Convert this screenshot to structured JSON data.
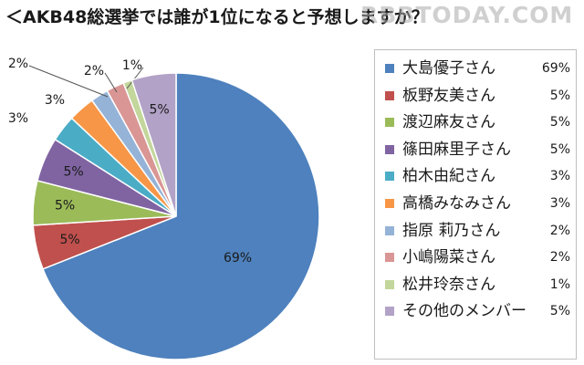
{
  "title": "＜AKB48総選挙では誰が1位になると予想しますか？",
  "watermark": "RBBTODAY.COM",
  "chart_data": {
    "type": "pie",
    "title": "＜AKB48総選挙では誰が1位になると予想しますか？",
    "start_angle_deg": 0,
    "direction": "clockwise",
    "legend_position": "right",
    "slices": [
      {
        "label": "大島優子さん",
        "value": 69,
        "value_label": "69%",
        "legend_value": "69%",
        "color": "#4e81bd"
      },
      {
        "label": "板野友美さん",
        "value": 5,
        "value_label": "5%",
        "legend_value": "5%",
        "color": "#c0504d"
      },
      {
        "label": "渡辺麻友さん",
        "value": 5,
        "value_label": "5%",
        "legend_value": "5%",
        "color": "#9bbb59"
      },
      {
        "label": "篠田麻里子さん",
        "value": 5,
        "value_label": "5%",
        "legend_value": "5%",
        "color": "#8064a2"
      },
      {
        "label": "柏木由紀さん",
        "value": 3,
        "value_label": "3%",
        "legend_value": "3%",
        "color": "#4bacc6"
      },
      {
        "label": "高橋みなみさん",
        "value": 3,
        "value_label": "3%",
        "legend_value": "3%",
        "color": "#f79646"
      },
      {
        "label": "指原 莉乃さん",
        "value": 2,
        "value_label": "2%",
        "legend_value": "2%",
        "color": "#95b3d7"
      },
      {
        "label": "小嶋陽菜さん",
        "value": 2,
        "value_label": "2%",
        "legend_value": "2%",
        "color": "#d99694"
      },
      {
        "label": "松井玲奈さん",
        "value": 1,
        "value_label": "1%",
        "legend_value": "1%",
        "color": "#c3d69b"
      },
      {
        "label": "その他のメンバー",
        "value": 5,
        "value_label": "5%",
        "legend_value": "5%",
        "color": "#b2a2c7"
      }
    ]
  }
}
